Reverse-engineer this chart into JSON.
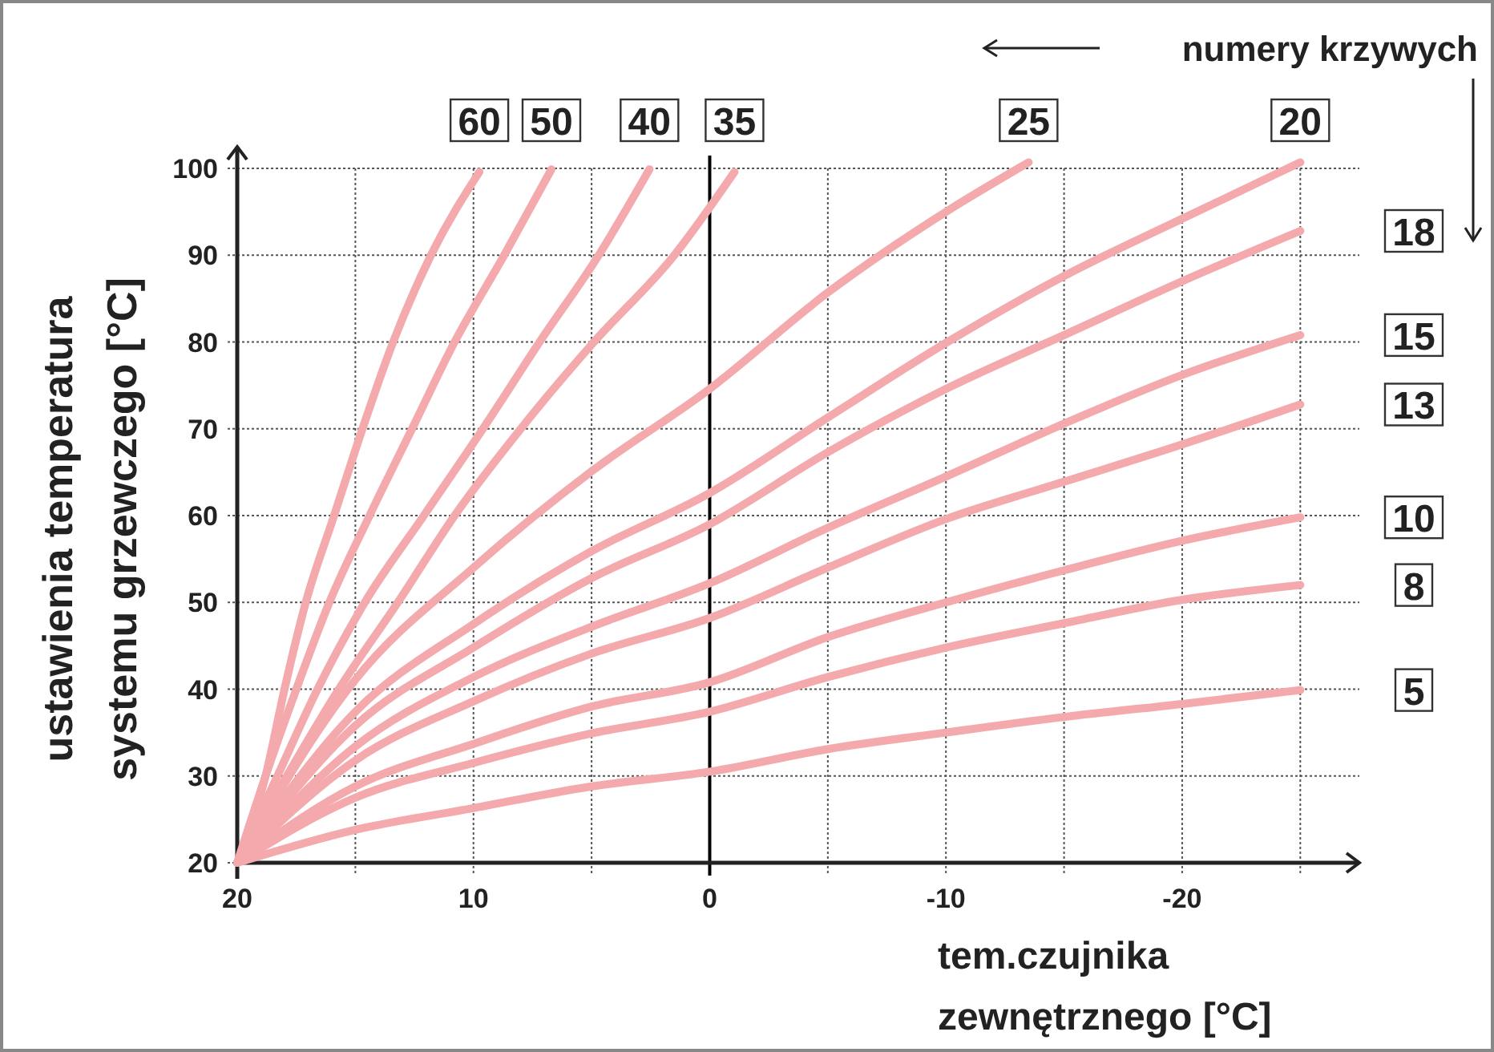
{
  "chart_data": {
    "type": "line",
    "xlabel": "tem.czujnika\nzewnętrznego [°C]",
    "ylabel": "ustawienia temperatura\nsystemu grzewczego [°C]",
    "annotations": [
      "numery krzywych"
    ],
    "xlim": [
      20,
      -27.5
    ],
    "ylim": [
      20,
      102.5
    ],
    "xticks": [
      20,
      {
        "value": 15,
        "label": null
      },
      10,
      {
        "value": 5,
        "label": null
      },
      0,
      {
        "value": -5,
        "label": null
      },
      -10,
      {
        "value": -15,
        "label": null
      },
      -20,
      {
        "value": -25,
        "label": null
      }
    ],
    "yticks": [
      20,
      30,
      40,
      50,
      60,
      70,
      80,
      90,
      100
    ],
    "grid": true,
    "marker": "none",
    "line_style": "solid",
    "ref_lines": [
      {
        "axis": "x",
        "value": 0,
        "color": "#000000"
      }
    ],
    "series": [
      {
        "name": "60",
        "color": "#f4a9ad",
        "x": [
          20,
          18.8,
          18,
          17.1,
          15.9,
          14.7,
          13.4,
          11.8,
          9.75
        ],
        "values": [
          20,
          30,
          40,
          50,
          60,
          70,
          80,
          90,
          99.6
        ]
      },
      {
        "name": "50",
        "color": "#f4a9ad",
        "x": [
          20,
          18.8,
          17.5,
          16.1,
          14.4,
          12.6,
          10.8,
          8.7,
          6.7
        ],
        "values": [
          20,
          30,
          40,
          50,
          60,
          70,
          80,
          90,
          99.9
        ]
      },
      {
        "name": "40",
        "color": "#f4a9ad",
        "x": [
          20,
          18.3,
          16.6,
          14.6,
          12.1,
          9.6,
          7.2,
          4.7,
          2.55
        ],
        "values": [
          20,
          30,
          40,
          50,
          60,
          70,
          80,
          90,
          99.9
        ]
      },
      {
        "name": "35",
        "color": "#f4a9ad",
        "x": [
          20,
          17.9,
          15.7,
          13.2,
          10.8,
          8,
          4.9,
          1.5,
          -1.05
        ],
        "values": [
          20,
          30,
          40,
          50,
          60,
          70,
          80,
          90,
          99.6
        ]
      },
      {
        "name": "25",
        "color": "#f4a9ad",
        "x": [
          20,
          15,
          10,
          5,
          0,
          -5,
          -10,
          -13.5
        ],
        "values": [
          20,
          41.1,
          54,
          65.1,
          74.6,
          85.7,
          95,
          100.7
        ]
      },
      {
        "name": "20",
        "color": "#f4a9ad",
        "x": [
          20,
          15,
          10,
          5,
          0,
          -5,
          -10,
          -15,
          -20,
          -25
        ],
        "values": [
          20,
          37.4,
          47.5,
          55.9,
          62.6,
          71.3,
          79.9,
          87.6,
          94.2,
          100.7
        ]
      },
      {
        "name": "18",
        "color": "#f4a9ad",
        "x": [
          20,
          15,
          10,
          5,
          0,
          -5,
          -10,
          -15,
          -20,
          -25
        ],
        "values": [
          20,
          35.8,
          44.8,
          52.8,
          59,
          67.3,
          74.6,
          80.8,
          87,
          92.8
        ]
      },
      {
        "name": "15",
        "color": "#f4a9ad",
        "x": [
          20,
          15,
          10,
          5,
          0,
          -5,
          -10,
          -15,
          -20,
          -25
        ],
        "values": [
          20,
          33.4,
          41.4,
          47.2,
          52.2,
          58.6,
          64.5,
          70.6,
          76.2,
          80.8
        ]
      },
      {
        "name": "13",
        "color": "#f4a9ad",
        "x": [
          20,
          15,
          10,
          5,
          0,
          -5,
          -10,
          -15,
          -20,
          -25
        ],
        "values": [
          20,
          31.8,
          38.6,
          44.1,
          48.2,
          54,
          59.6,
          63.9,
          68.2,
          72.8
        ]
      },
      {
        "name": "10",
        "color": "#f4a9ad",
        "x": [
          20,
          15,
          10,
          5,
          0,
          -5,
          -10,
          -15,
          -20,
          -25
        ],
        "values": [
          20,
          28.8,
          33.7,
          38,
          40.8,
          46,
          50,
          53.7,
          57.1,
          59.8
        ]
      },
      {
        "name": "8",
        "color": "#f4a9ad",
        "x": [
          20,
          15,
          10,
          5,
          0,
          -5,
          -10,
          -15,
          -20,
          -25
        ],
        "values": [
          20,
          27.5,
          31.5,
          34.9,
          37.4,
          41.4,
          44.8,
          47.6,
          50.3,
          52
        ]
      },
      {
        "name": "5",
        "color": "#f4a9ad",
        "x": [
          20,
          15,
          10,
          5,
          0,
          -5,
          -10,
          -15,
          -20,
          -25
        ],
        "values": [
          20,
          23.8,
          26.3,
          28.8,
          30.5,
          33.1,
          35,
          36.8,
          38.3,
          39.9
        ]
      }
    ]
  }
}
